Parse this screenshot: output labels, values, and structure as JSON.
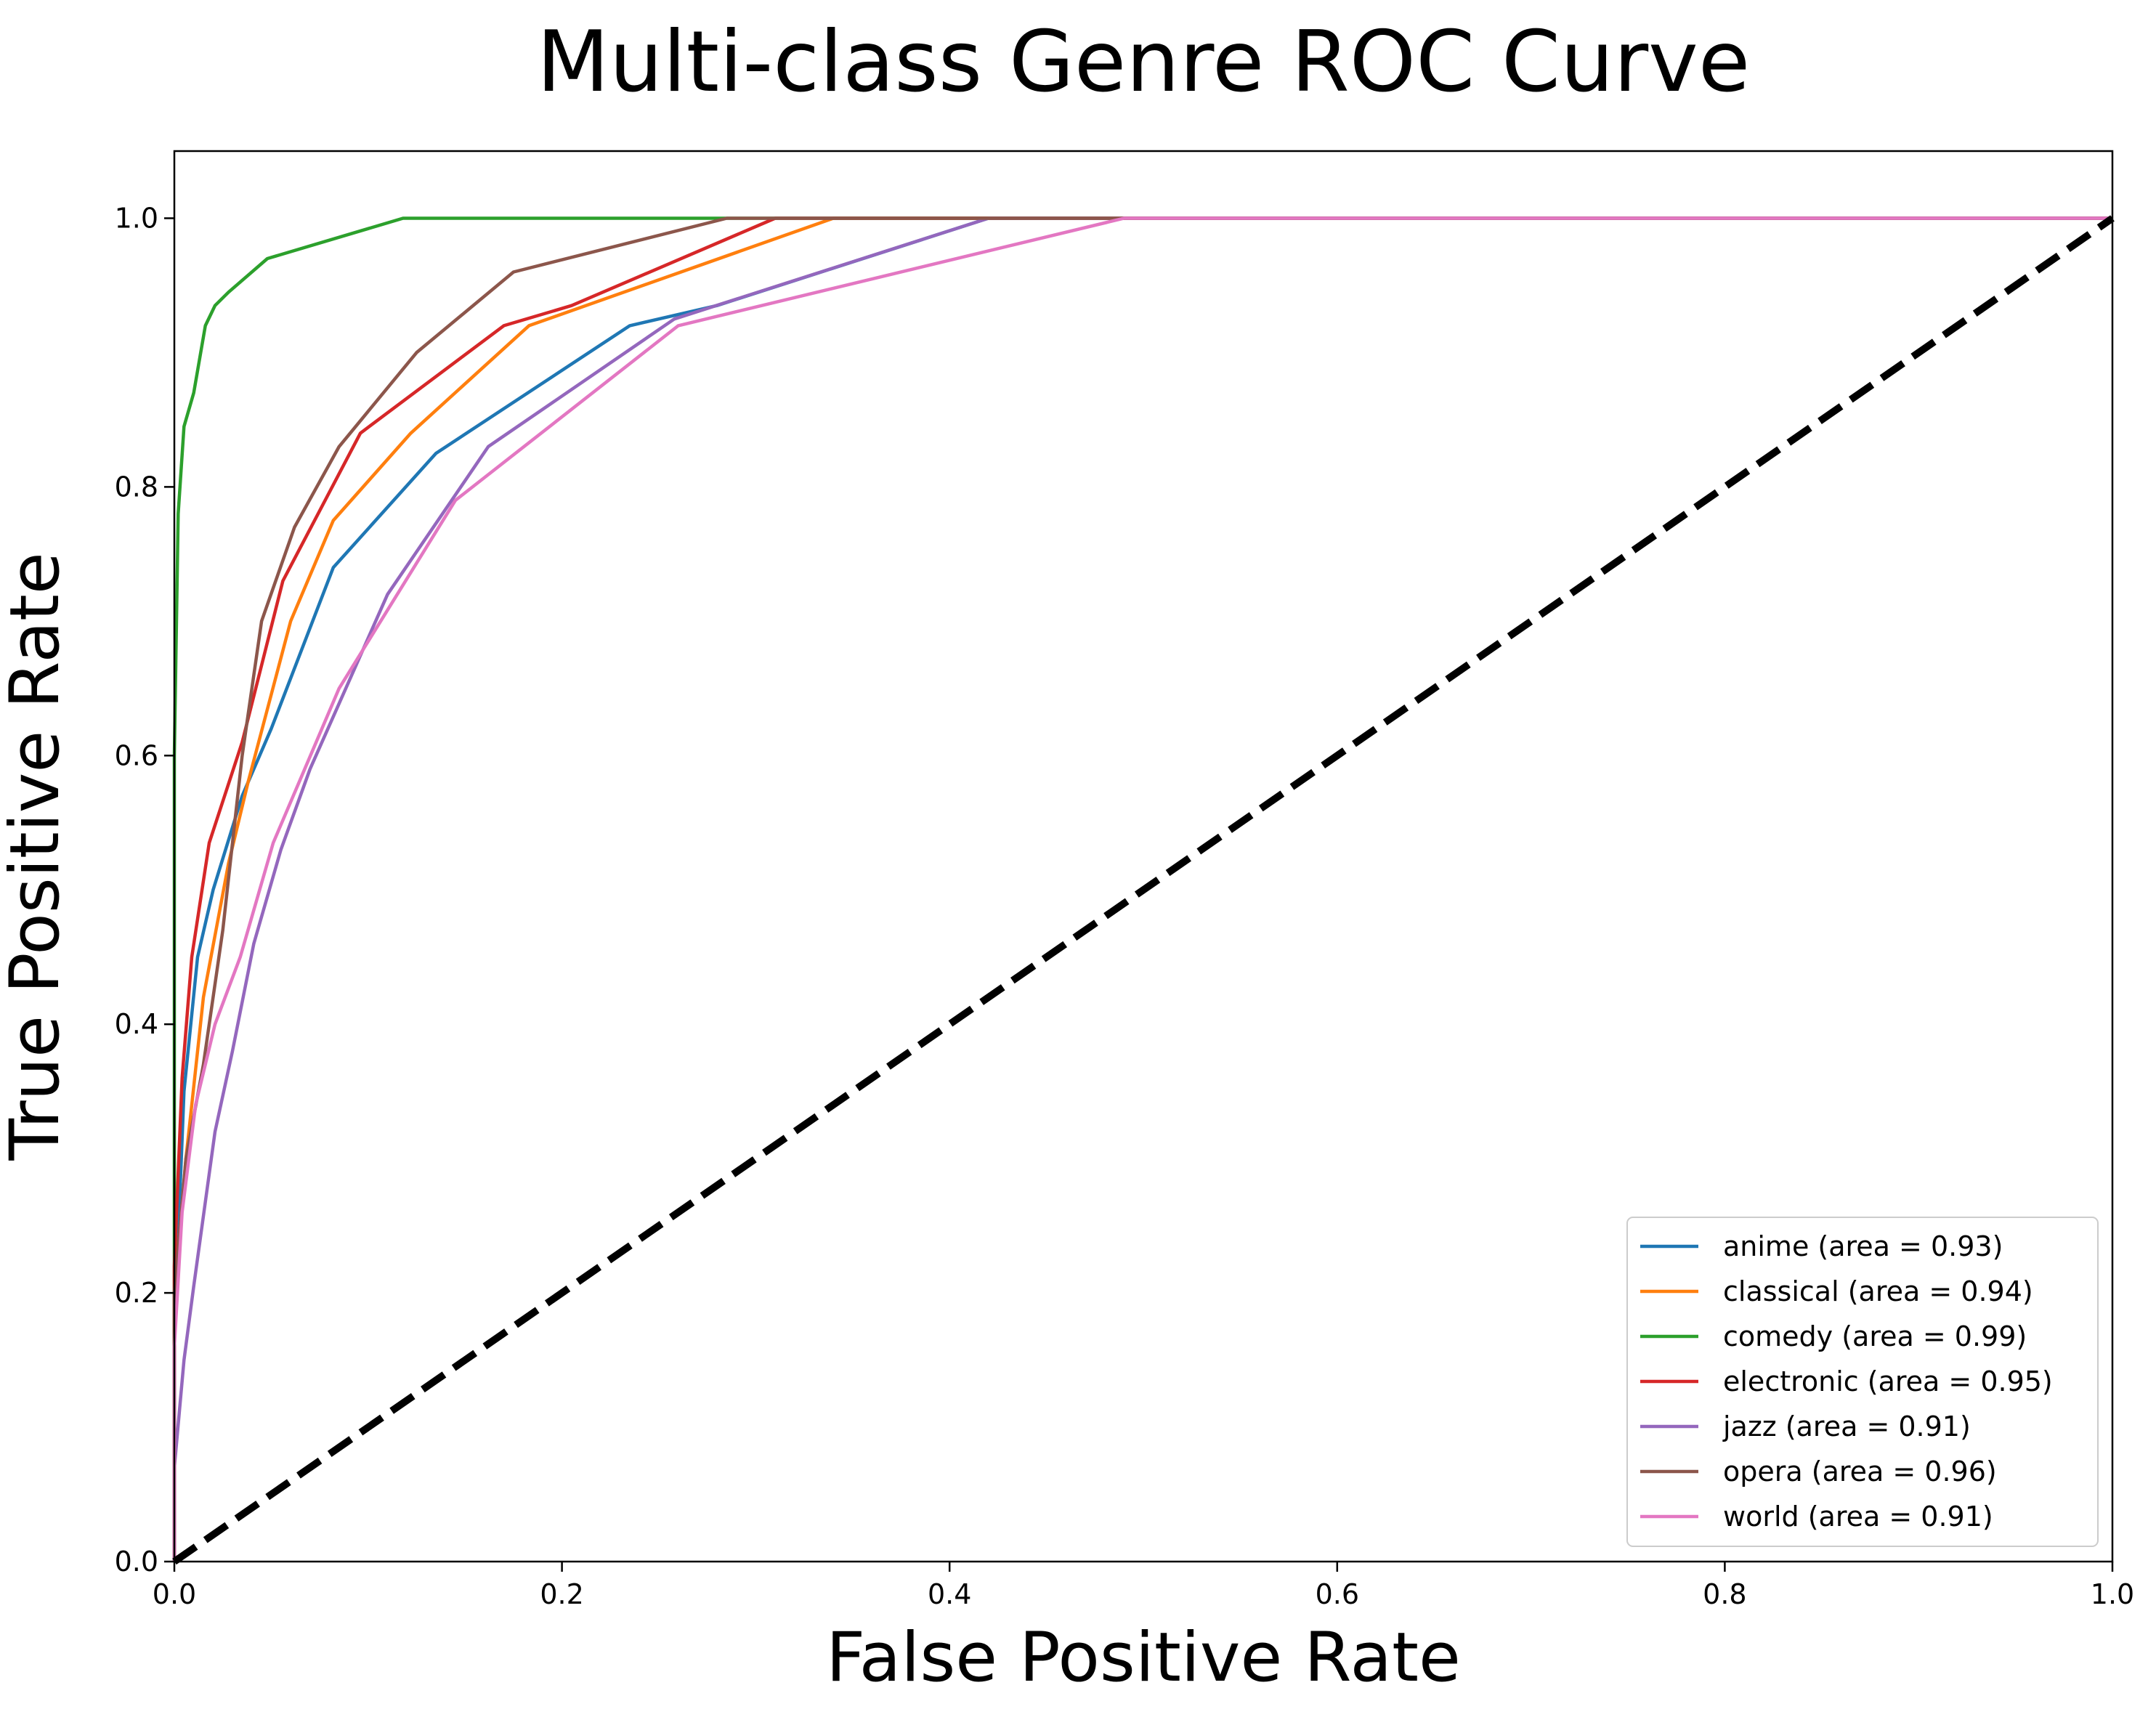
{
  "chart_data": {
    "type": "line",
    "title": "Multi-class Genre ROC Curve",
    "xlabel": "False Positive Rate",
    "ylabel": "True Positive Rate",
    "xlim": [
      0.0,
      1.0
    ],
    "ylim": [
      0.0,
      1.05
    ],
    "xticks": [
      "0.0",
      "0.2",
      "0.4",
      "0.6",
      "0.8",
      "1.0"
    ],
    "yticks": [
      "0.0",
      "0.2",
      "0.4",
      "0.6",
      "0.8",
      "1.0"
    ],
    "grid": false,
    "legend_position": "lower-right",
    "series": [
      {
        "name": "anime (area = 0.93)",
        "color": "#1f77b4",
        "x": [
          0.0,
          0.0,
          0.005,
          0.012,
          0.02,
          0.035,
          0.05,
          0.082,
          0.135,
          0.235,
          0.28,
          0.42,
          1.0
        ],
        "y": [
          0.0,
          0.17,
          0.35,
          0.45,
          0.5,
          0.57,
          0.62,
          0.74,
          0.825,
          0.92,
          0.935,
          1.0,
          1.0
        ]
      },
      {
        "name": "classical (area = 0.94)",
        "color": "#ff7f0e",
        "x": [
          0.0,
          0.0,
          0.006,
          0.015,
          0.028,
          0.038,
          0.06,
          0.082,
          0.122,
          0.183,
          0.34,
          1.0
        ],
        "y": [
          0.0,
          0.2,
          0.3,
          0.42,
          0.52,
          0.58,
          0.7,
          0.775,
          0.84,
          0.92,
          1.0,
          1.0
        ]
      },
      {
        "name": "comedy (area = 0.99)",
        "color": "#2ca02c",
        "x": [
          0.0,
          0.0,
          0.002,
          0.005,
          0.01,
          0.016,
          0.021,
          0.028,
          0.048,
          0.118,
          0.285,
          1.0
        ],
        "y": [
          0.0,
          0.6,
          0.78,
          0.845,
          0.87,
          0.92,
          0.935,
          0.945,
          0.97,
          1.0,
          1.0,
          1.0
        ]
      },
      {
        "name": "electronic (area = 0.95)",
        "color": "#d62728",
        "x": [
          0.0,
          0.0,
          0.004,
          0.009,
          0.018,
          0.035,
          0.056,
          0.096,
          0.17,
          0.205,
          0.31,
          1.0
        ],
        "y": [
          0.0,
          0.22,
          0.36,
          0.45,
          0.535,
          0.61,
          0.73,
          0.84,
          0.92,
          0.935,
          1.0,
          1.0
        ]
      },
      {
        "name": "jazz (area = 0.91)",
        "color": "#9467bd",
        "x": [
          0.0,
          0.0,
          0.005,
          0.01,
          0.021,
          0.03,
          0.041,
          0.055,
          0.07,
          0.11,
          0.162,
          0.258,
          0.42,
          1.0
        ],
        "y": [
          0.0,
          0.07,
          0.15,
          0.205,
          0.32,
          0.38,
          0.46,
          0.53,
          0.59,
          0.72,
          0.83,
          0.925,
          1.0,
          1.0
        ]
      },
      {
        "name": "opera (area = 0.96)",
        "color": "#8c564b",
        "x": [
          0.0,
          0.0,
          0.006,
          0.015,
          0.025,
          0.035,
          0.045,
          0.062,
          0.085,
          0.125,
          0.175,
          0.285,
          1.0
        ],
        "y": [
          0.0,
          0.2,
          0.3,
          0.37,
          0.47,
          0.6,
          0.7,
          0.77,
          0.83,
          0.9,
          0.96,
          1.0,
          1.0
        ]
      },
      {
        "name": "world (area = 0.91)",
        "color": "#e377c2",
        "x": [
          0.0,
          0.0,
          0.004,
          0.011,
          0.021,
          0.034,
          0.051,
          0.085,
          0.145,
          0.26,
          0.49,
          1.0
        ],
        "y": [
          0.0,
          0.16,
          0.26,
          0.34,
          0.4,
          0.45,
          0.535,
          0.65,
          0.79,
          0.92,
          1.0,
          1.0
        ]
      },
      {
        "name": "",
        "color": "#000000",
        "dashed": true,
        "x": [
          0.0,
          1.0
        ],
        "y": [
          0.0,
          1.0
        ]
      }
    ]
  }
}
